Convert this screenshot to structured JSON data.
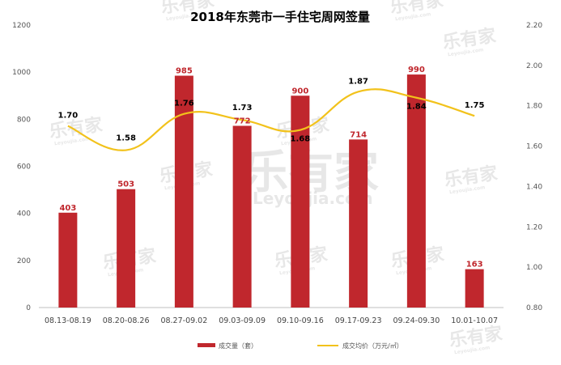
{
  "chart_data": {
    "type": "bar",
    "title": "2018年东莞市一手住宅周网签量",
    "categories": [
      "08.13-08.19",
      "08.20-08.26",
      "08.27-09.02",
      "09.03-09.09",
      "09.10-09.16",
      "09.17-09.23",
      "09.24-09.30",
      "10.01-10.07"
    ],
    "series": [
      {
        "name": "成交量（套）",
        "type": "bar",
        "axis": "left",
        "color": "#c0272d",
        "values": [
          403,
          503,
          985,
          772,
          900,
          714,
          990,
          163
        ]
      },
      {
        "name": "成交均价（万元/㎡）",
        "type": "line",
        "axis": "right",
        "color": "#f2c21b",
        "values": [
          1.7,
          1.58,
          1.76,
          1.73,
          1.68,
          1.87,
          1.84,
          1.75
        ]
      }
    ],
    "y_left": {
      "min": 0,
      "max": 1200,
      "ticks": [
        "0",
        "200",
        "400",
        "600",
        "800",
        "1000",
        "1200"
      ]
    },
    "y_right": {
      "min": 0.8,
      "max": 2.2,
      "ticks": [
        "0.80",
        "1.00",
        "1.20",
        "1.40",
        "1.60",
        "1.80",
        "2.00",
        "2.20"
      ]
    },
    "bar_labels": [
      "403",
      "503",
      "985",
      "772",
      "900",
      "714",
      "990",
      "163"
    ],
    "line_labels": [
      "1.70",
      "1.58",
      "1.76",
      "1.73",
      "1.68",
      "1.87",
      "1.84",
      "1.75"
    ],
    "grid": false,
    "legend": "bottom-center"
  },
  "watermark": {
    "text": "乐有家",
    "sub": "Leyoujia.com",
    "big_sub": "Leyoujia.com"
  }
}
